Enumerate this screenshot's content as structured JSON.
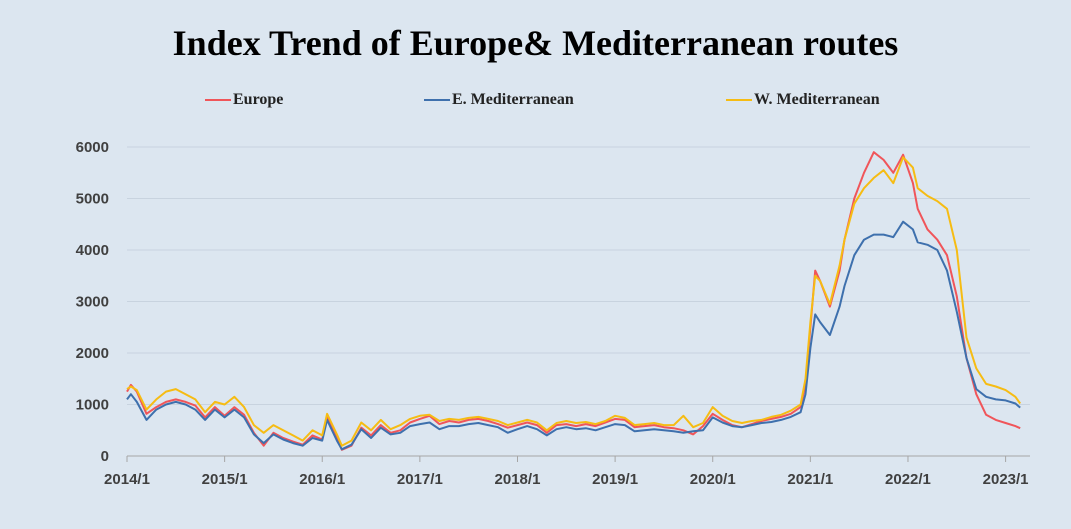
{
  "chart_data": {
    "type": "line",
    "title": "Index Trend of Europe& Mediterranean routes",
    "xlabel": "",
    "ylabel": "",
    "ylim": [
      0,
      6000
    ],
    "y_ticks": [
      "0",
      "1000",
      "2000",
      "3000",
      "4000",
      "5000",
      "6000"
    ],
    "x_ticks": [
      "2014/1",
      "2015/1",
      "2016/1",
      "2017/1",
      "2018/1",
      "2019/1",
      "2020/1",
      "2021/1",
      "2022/1",
      "2023/1"
    ],
    "grid": "horizontal",
    "legend_position": "top",
    "x_unit": "year",
    "series": [
      {
        "name": "Europe",
        "color": "#f0555a",
        "points": [
          [
            2014.0,
            1250
          ],
          [
            2014.04,
            1380
          ],
          [
            2014.1,
            1250
          ],
          [
            2014.2,
            820
          ],
          [
            2014.3,
            950
          ],
          [
            2014.4,
            1050
          ],
          [
            2014.5,
            1100
          ],
          [
            2014.6,
            1050
          ],
          [
            2014.7,
            980
          ],
          [
            2014.8,
            750
          ],
          [
            2014.9,
            950
          ],
          [
            2015.0,
            780
          ],
          [
            2015.1,
            950
          ],
          [
            2015.2,
            800
          ],
          [
            2015.3,
            450
          ],
          [
            2015.4,
            200
          ],
          [
            2015.5,
            450
          ],
          [
            2015.6,
            350
          ],
          [
            2015.7,
            280
          ],
          [
            2015.8,
            220
          ],
          [
            2015.9,
            400
          ],
          [
            2016.0,
            320
          ],
          [
            2016.05,
            780
          ],
          [
            2016.15,
            350
          ],
          [
            2016.2,
            120
          ],
          [
            2016.3,
            200
          ],
          [
            2016.4,
            550
          ],
          [
            2016.5,
            400
          ],
          [
            2016.6,
            600
          ],
          [
            2016.7,
            450
          ],
          [
            2016.8,
            500
          ],
          [
            2016.9,
            650
          ],
          [
            2017.0,
            720
          ],
          [
            2017.1,
            780
          ],
          [
            2017.2,
            620
          ],
          [
            2017.3,
            680
          ],
          [
            2017.4,
            650
          ],
          [
            2017.5,
            700
          ],
          [
            2017.6,
            720
          ],
          [
            2017.7,
            680
          ],
          [
            2017.8,
            620
          ],
          [
            2017.9,
            550
          ],
          [
            2018.0,
            600
          ],
          [
            2018.1,
            650
          ],
          [
            2018.2,
            600
          ],
          [
            2018.3,
            450
          ],
          [
            2018.4,
            600
          ],
          [
            2018.5,
            620
          ],
          [
            2018.6,
            580
          ],
          [
            2018.7,
            620
          ],
          [
            2018.8,
            580
          ],
          [
            2018.9,
            650
          ],
          [
            2019.0,
            720
          ],
          [
            2019.1,
            700
          ],
          [
            2019.2,
            560
          ],
          [
            2019.3,
            580
          ],
          [
            2019.4,
            600
          ],
          [
            2019.5,
            560
          ],
          [
            2019.6,
            540
          ],
          [
            2019.7,
            500
          ],
          [
            2019.8,
            420
          ],
          [
            2019.9,
            580
          ],
          [
            2020.0,
            820
          ],
          [
            2020.1,
            700
          ],
          [
            2020.2,
            600
          ],
          [
            2020.3,
            560
          ],
          [
            2020.4,
            620
          ],
          [
            2020.5,
            680
          ],
          [
            2020.6,
            720
          ],
          [
            2020.7,
            760
          ],
          [
            2020.8,
            820
          ],
          [
            2020.9,
            950
          ],
          [
            2020.95,
            1400
          ],
          [
            2021.0,
            2500
          ],
          [
            2021.05,
            3600
          ],
          [
            2021.1,
            3400
          ],
          [
            2021.2,
            2900
          ],
          [
            2021.3,
            3600
          ],
          [
            2021.35,
            4200
          ],
          [
            2021.45,
            5000
          ],
          [
            2021.55,
            5500
          ],
          [
            2021.65,
            5900
          ],
          [
            2021.75,
            5750
          ],
          [
            2021.85,
            5500
          ],
          [
            2021.95,
            5850
          ],
          [
            2022.05,
            5300
          ],
          [
            2022.1,
            4800
          ],
          [
            2022.2,
            4400
          ],
          [
            2022.3,
            4200
          ],
          [
            2022.4,
            3900
          ],
          [
            2022.5,
            3100
          ],
          [
            2022.6,
            1900
          ],
          [
            2022.7,
            1200
          ],
          [
            2022.8,
            800
          ],
          [
            2022.9,
            700
          ],
          [
            2023.0,
            640
          ],
          [
            2023.1,
            580
          ],
          [
            2023.15,
            540
          ]
        ]
      },
      {
        "name": "E. Mediterranean",
        "color": "#3e70ad",
        "points": [
          [
            2014.0,
            1100
          ],
          [
            2014.04,
            1200
          ],
          [
            2014.1,
            1050
          ],
          [
            2014.2,
            700
          ],
          [
            2014.3,
            900
          ],
          [
            2014.4,
            1000
          ],
          [
            2014.5,
            1050
          ],
          [
            2014.6,
            1000
          ],
          [
            2014.7,
            900
          ],
          [
            2014.8,
            700
          ],
          [
            2014.9,
            900
          ],
          [
            2015.0,
            750
          ],
          [
            2015.1,
            900
          ],
          [
            2015.2,
            750
          ],
          [
            2015.3,
            420
          ],
          [
            2015.4,
            250
          ],
          [
            2015.5,
            420
          ],
          [
            2015.6,
            320
          ],
          [
            2015.7,
            250
          ],
          [
            2015.8,
            200
          ],
          [
            2015.9,
            350
          ],
          [
            2016.0,
            300
          ],
          [
            2016.05,
            700
          ],
          [
            2016.15,
            300
          ],
          [
            2016.2,
            130
          ],
          [
            2016.3,
            220
          ],
          [
            2016.4,
            520
          ],
          [
            2016.5,
            350
          ],
          [
            2016.6,
            550
          ],
          [
            2016.7,
            420
          ],
          [
            2016.8,
            450
          ],
          [
            2016.9,
            580
          ],
          [
            2017.0,
            620
          ],
          [
            2017.1,
            650
          ],
          [
            2017.2,
            520
          ],
          [
            2017.3,
            580
          ],
          [
            2017.4,
            580
          ],
          [
            2017.5,
            620
          ],
          [
            2017.6,
            640
          ],
          [
            2017.7,
            600
          ],
          [
            2017.8,
            560
          ],
          [
            2017.9,
            450
          ],
          [
            2018.0,
            520
          ],
          [
            2018.1,
            580
          ],
          [
            2018.2,
            520
          ],
          [
            2018.3,
            400
          ],
          [
            2018.4,
            520
          ],
          [
            2018.5,
            560
          ],
          [
            2018.6,
            520
          ],
          [
            2018.7,
            540
          ],
          [
            2018.8,
            500
          ],
          [
            2018.9,
            560
          ],
          [
            2019.0,
            620
          ],
          [
            2019.1,
            600
          ],
          [
            2019.2,
            480
          ],
          [
            2019.3,
            500
          ],
          [
            2019.4,
            520
          ],
          [
            2019.5,
            500
          ],
          [
            2019.6,
            480
          ],
          [
            2019.7,
            450
          ],
          [
            2019.8,
            480
          ],
          [
            2019.9,
            500
          ],
          [
            2020.0,
            750
          ],
          [
            2020.1,
            650
          ],
          [
            2020.2,
            580
          ],
          [
            2020.3,
            560
          ],
          [
            2020.4,
            600
          ],
          [
            2020.5,
            640
          ],
          [
            2020.6,
            660
          ],
          [
            2020.7,
            700
          ],
          [
            2020.8,
            760
          ],
          [
            2020.9,
            850
          ],
          [
            2020.95,
            1200
          ],
          [
            2021.0,
            2100
          ],
          [
            2021.05,
            2750
          ],
          [
            2021.1,
            2600
          ],
          [
            2021.2,
            2350
          ],
          [
            2021.3,
            2900
          ],
          [
            2021.35,
            3300
          ],
          [
            2021.45,
            3900
          ],
          [
            2021.55,
            4200
          ],
          [
            2021.65,
            4300
          ],
          [
            2021.75,
            4300
          ],
          [
            2021.85,
            4250
          ],
          [
            2021.95,
            4550
          ],
          [
            2022.05,
            4400
          ],
          [
            2022.1,
            4150
          ],
          [
            2022.2,
            4100
          ],
          [
            2022.3,
            4000
          ],
          [
            2022.4,
            3600
          ],
          [
            2022.5,
            2800
          ],
          [
            2022.6,
            1900
          ],
          [
            2022.7,
            1300
          ],
          [
            2022.8,
            1150
          ],
          [
            2022.9,
            1100
          ],
          [
            2023.0,
            1080
          ],
          [
            2023.1,
            1020
          ],
          [
            2023.15,
            940
          ]
        ]
      },
      {
        "name": "W. Mediterranean",
        "color": "#f6bc13",
        "points": [
          [
            2014.0,
            1300
          ],
          [
            2014.04,
            1350
          ],
          [
            2014.1,
            1280
          ],
          [
            2014.2,
            900
          ],
          [
            2014.3,
            1100
          ],
          [
            2014.4,
            1250
          ],
          [
            2014.5,
            1300
          ],
          [
            2014.6,
            1200
          ],
          [
            2014.7,
            1100
          ],
          [
            2014.8,
            850
          ],
          [
            2014.9,
            1050
          ],
          [
            2015.0,
            1000
          ],
          [
            2015.1,
            1150
          ],
          [
            2015.2,
            950
          ],
          [
            2015.3,
            600
          ],
          [
            2015.4,
            450
          ],
          [
            2015.5,
            600
          ],
          [
            2015.6,
            500
          ],
          [
            2015.7,
            400
          ],
          [
            2015.8,
            300
          ],
          [
            2015.9,
            500
          ],
          [
            2016.0,
            400
          ],
          [
            2016.05,
            820
          ],
          [
            2016.15,
            420
          ],
          [
            2016.2,
            200
          ],
          [
            2016.3,
            300
          ],
          [
            2016.4,
            650
          ],
          [
            2016.5,
            500
          ],
          [
            2016.6,
            700
          ],
          [
            2016.7,
            520
          ],
          [
            2016.8,
            600
          ],
          [
            2016.9,
            720
          ],
          [
            2017.0,
            780
          ],
          [
            2017.1,
            800
          ],
          [
            2017.2,
            680
          ],
          [
            2017.3,
            720
          ],
          [
            2017.4,
            700
          ],
          [
            2017.5,
            740
          ],
          [
            2017.6,
            760
          ],
          [
            2017.7,
            720
          ],
          [
            2017.8,
            680
          ],
          [
            2017.9,
            600
          ],
          [
            2018.0,
            650
          ],
          [
            2018.1,
            700
          ],
          [
            2018.2,
            650
          ],
          [
            2018.3,
            500
          ],
          [
            2018.4,
            640
          ],
          [
            2018.5,
            680
          ],
          [
            2018.6,
            640
          ],
          [
            2018.7,
            660
          ],
          [
            2018.8,
            620
          ],
          [
            2018.9,
            680
          ],
          [
            2019.0,
            780
          ],
          [
            2019.1,
            740
          ],
          [
            2019.2,
            600
          ],
          [
            2019.3,
            620
          ],
          [
            2019.4,
            640
          ],
          [
            2019.5,
            600
          ],
          [
            2019.6,
            600
          ],
          [
            2019.7,
            780
          ],
          [
            2019.8,
            560
          ],
          [
            2019.9,
            640
          ],
          [
            2020.0,
            950
          ],
          [
            2020.1,
            780
          ],
          [
            2020.2,
            680
          ],
          [
            2020.3,
            640
          ],
          [
            2020.4,
            680
          ],
          [
            2020.5,
            700
          ],
          [
            2020.6,
            760
          ],
          [
            2020.7,
            800
          ],
          [
            2020.8,
            880
          ],
          [
            2020.9,
            1000
          ],
          [
            2020.95,
            1500
          ],
          [
            2021.0,
            2600
          ],
          [
            2021.05,
            3500
          ],
          [
            2021.1,
            3400
          ],
          [
            2021.2,
            2950
          ],
          [
            2021.3,
            3700
          ],
          [
            2021.35,
            4200
          ],
          [
            2021.45,
            4900
          ],
          [
            2021.55,
            5200
          ],
          [
            2021.65,
            5400
          ],
          [
            2021.75,
            5550
          ],
          [
            2021.85,
            5300
          ],
          [
            2021.95,
            5800
          ],
          [
            2022.05,
            5600
          ],
          [
            2022.1,
            5200
          ],
          [
            2022.2,
            5050
          ],
          [
            2022.3,
            4950
          ],
          [
            2022.4,
            4800
          ],
          [
            2022.5,
            4000
          ],
          [
            2022.6,
            2300
          ],
          [
            2022.7,
            1700
          ],
          [
            2022.8,
            1400
          ],
          [
            2022.9,
            1350
          ],
          [
            2023.0,
            1280
          ],
          [
            2023.1,
            1150
          ],
          [
            2023.15,
            1020
          ]
        ]
      }
    ]
  }
}
